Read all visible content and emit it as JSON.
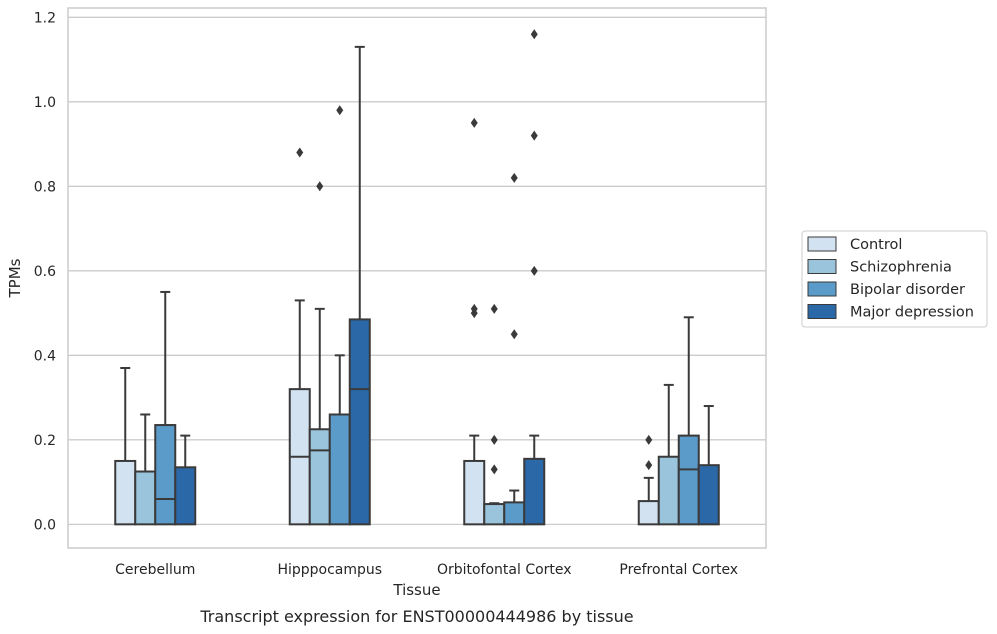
{
  "caption": "Transcript expression for ENST00000444986 by tissue",
  "chart_data": {
    "type": "box",
    "xlabel": "Tissue",
    "ylabel": "TPMs",
    "ylim": [
      -0.056,
      1.222
    ],
    "yticks": [
      0.0,
      0.2,
      0.4,
      0.6,
      0.8,
      1.0,
      1.2
    ],
    "ytick_labels": [
      "0.0",
      "0.2",
      "0.4",
      "0.6",
      "0.8",
      "1.0",
      "1.2"
    ],
    "grid": "horizontal",
    "legend_position": "right",
    "categories": [
      "Cerebellum",
      "Hipppocampus",
      "Orbitofontal Cortex",
      "Prefrontal Cortex"
    ],
    "series": [
      {
        "name": "Control",
        "color": "#d2e2f0",
        "boxes": [
          {
            "whislo": 0.0,
            "q1": 0.0,
            "med": 0.0,
            "q3": 0.15,
            "whishi": 0.37,
            "fliers": []
          },
          {
            "whislo": 0.0,
            "q1": 0.0,
            "med": 0.16,
            "q3": 0.32,
            "whishi": 0.53,
            "fliers": [
              0.88
            ]
          },
          {
            "whislo": 0.0,
            "q1": 0.0,
            "med": 0.0,
            "q3": 0.15,
            "whishi": 0.21,
            "fliers": [
              0.5,
              0.51,
              0.95
            ]
          },
          {
            "whislo": 0.0,
            "q1": 0.0,
            "med": 0.0,
            "q3": 0.055,
            "whishi": 0.11,
            "fliers": [
              0.14,
              0.2
            ]
          }
        ]
      },
      {
        "name": "Schizophrenia",
        "color": "#9ac3dc",
        "boxes": [
          {
            "whislo": 0.0,
            "q1": 0.0,
            "med": 0.0,
            "q3": 0.125,
            "whishi": 0.26,
            "fliers": []
          },
          {
            "whislo": 0.0,
            "q1": 0.0,
            "med": 0.175,
            "q3": 0.225,
            "whishi": 0.51,
            "fliers": [
              0.8
            ]
          },
          {
            "whislo": 0.0,
            "q1": 0.0,
            "med": 0.0,
            "q3": 0.048,
            "whishi": 0.05,
            "fliers": [
              0.13,
              0.2,
              0.51
            ]
          },
          {
            "whislo": 0.0,
            "q1": 0.0,
            "med": 0.0,
            "q3": 0.16,
            "whishi": 0.33,
            "fliers": []
          }
        ]
      },
      {
        "name": "Bipolar disorder",
        "color": "#5b9bc9",
        "boxes": [
          {
            "whislo": 0.0,
            "q1": 0.0,
            "med": 0.06,
            "q3": 0.235,
            "whishi": 0.55,
            "fliers": []
          },
          {
            "whislo": 0.0,
            "q1": 0.0,
            "med": 0.0,
            "q3": 0.26,
            "whishi": 0.4,
            "fliers": [
              0.98
            ]
          },
          {
            "whislo": 0.0,
            "q1": 0.0,
            "med": 0.0,
            "q3": 0.052,
            "whishi": 0.08,
            "fliers": [
              0.45,
              0.82
            ]
          },
          {
            "whislo": 0.0,
            "q1": 0.0,
            "med": 0.13,
            "q3": 0.21,
            "whishi": 0.49,
            "fliers": []
          }
        ]
      },
      {
        "name": "Major depression",
        "color": "#2b68a8",
        "boxes": [
          {
            "whislo": 0.0,
            "q1": 0.0,
            "med": 0.0,
            "q3": 0.135,
            "whishi": 0.21,
            "fliers": []
          },
          {
            "whislo": 0.0,
            "q1": 0.0,
            "med": 0.32,
            "q3": 0.485,
            "whishi": 1.13,
            "fliers": []
          },
          {
            "whislo": 0.0,
            "q1": 0.0,
            "med": 0.0,
            "q3": 0.155,
            "whishi": 0.21,
            "fliers": [
              0.6,
              0.92,
              1.16
            ]
          },
          {
            "whislo": 0.0,
            "q1": 0.0,
            "med": 0.0,
            "q3": 0.14,
            "whishi": 0.28,
            "fliers": []
          }
        ]
      }
    ]
  }
}
